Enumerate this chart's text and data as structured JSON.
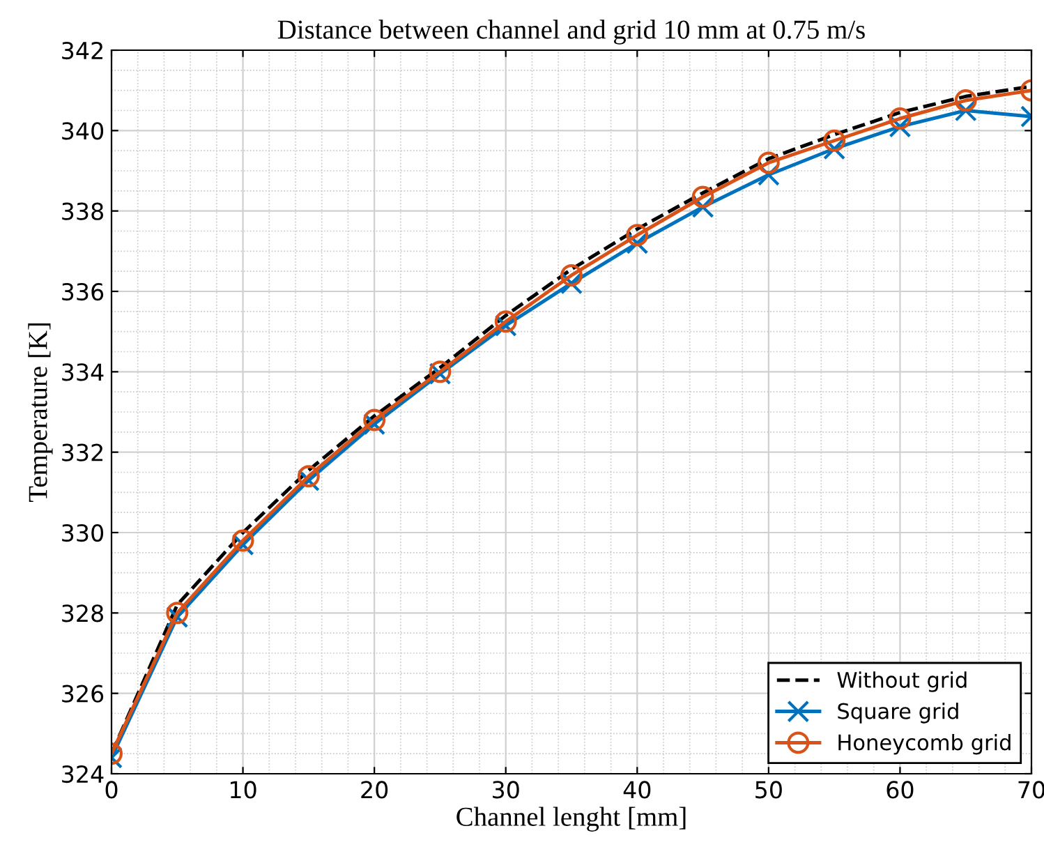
{
  "chart_data": {
    "type": "line",
    "title": "Distance between channel and grid 10 mm at 0.75 m/s",
    "xlabel": "Channel lenght [mm]",
    "ylabel": "Temperature [K]",
    "x": [
      0,
      5,
      10,
      15,
      20,
      25,
      30,
      35,
      40,
      45,
      50,
      55,
      60,
      65,
      70
    ],
    "series": [
      {
        "name": "Without grid",
        "color": "#000000",
        "line_style": "dashed",
        "marker": "none",
        "values": [
          324.5,
          328.2,
          330.0,
          331.55,
          332.9,
          334.1,
          335.4,
          336.55,
          337.55,
          338.45,
          339.3,
          339.9,
          340.45,
          340.85,
          341.1
        ]
      },
      {
        "name": "Square grid",
        "color": "#0072bd",
        "line_style": "solid",
        "marker": "cross",
        "values": [
          324.4,
          327.9,
          329.7,
          331.3,
          332.7,
          333.95,
          335.15,
          336.2,
          337.2,
          338.1,
          338.9,
          339.55,
          340.1,
          340.5,
          340.35
        ]
      },
      {
        "name": "Honeycomb grid",
        "color": "#d95319",
        "line_style": "solid",
        "marker": "circle",
        "values": [
          324.5,
          328.0,
          329.8,
          331.4,
          332.8,
          334.0,
          335.25,
          336.4,
          337.4,
          338.35,
          339.2,
          339.75,
          340.3,
          340.75,
          341.0
        ]
      }
    ],
    "xlim": [
      0,
      70
    ],
    "xticks": [
      0,
      10,
      20,
      30,
      40,
      50,
      60,
      70
    ],
    "ylim": [
      324,
      342
    ],
    "yticks": [
      324,
      326,
      328,
      330,
      332,
      334,
      336,
      338,
      340,
      342
    ],
    "grid": true,
    "legend": "bottom right"
  }
}
